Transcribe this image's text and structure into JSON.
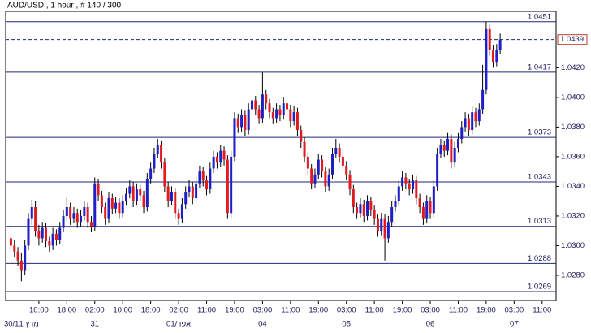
{
  "chart_data": {
    "type": "candlestick",
    "title": "AUD/USD , 1 hour , # 140 / 300",
    "up_color": "#1f1fc8",
    "down_color": "#e01a1e",
    "wick_color": "#000000",
    "level_color": "#1f2a7a",
    "ylim": [
      1.0263,
      1.0458
    ],
    "yticks": [
      {
        "value": 1.042,
        "label": "1.0420"
      },
      {
        "value": 1.04,
        "label": "1.0400"
      },
      {
        "value": 1.038,
        "label": "1.0380"
      },
      {
        "value": 1.036,
        "label": "1.0360"
      },
      {
        "value": 1.034,
        "label": "1.0340"
      },
      {
        "value": 1.032,
        "label": "1.0320"
      },
      {
        "value": 1.03,
        "label": "1.0300"
      },
      {
        "value": 1.028,
        "label": "1.0280"
      }
    ],
    "xlim": [
      -1.5,
      156
    ],
    "xticks": [
      {
        "value": 8,
        "label": "10:00"
      },
      {
        "value": 16,
        "label": "18:00"
      },
      {
        "value": 24,
        "label": "02:00"
      },
      {
        "value": 32,
        "label": "10:00"
      },
      {
        "value": 40,
        "label": "18:00"
      },
      {
        "value": 48,
        "label": "02:00"
      },
      {
        "value": 56,
        "label": "11:00"
      },
      {
        "value": 64,
        "label": "19:00"
      },
      {
        "value": 72,
        "label": "03:00"
      },
      {
        "value": 80,
        "label": "11:00"
      },
      {
        "value": 88,
        "label": "19:00"
      },
      {
        "value": 96,
        "label": "03:00"
      },
      {
        "value": 104,
        "label": "11:00"
      },
      {
        "value": 112,
        "label": "19:00"
      },
      {
        "value": 120,
        "label": "03:00"
      },
      {
        "value": 128,
        "label": "11:00"
      },
      {
        "value": 136,
        "label": "19:00"
      },
      {
        "value": 144,
        "label": "03:00"
      },
      {
        "value": 152,
        "label": "11:00"
      }
    ],
    "date_ticks": [
      {
        "value": 3,
        "label": "30/11 מרץ"
      },
      {
        "value": 24,
        "label": "31"
      },
      {
        "value": 48,
        "label": "01/אפר"
      },
      {
        "value": 72,
        "label": "04"
      },
      {
        "value": 96,
        "label": "05"
      },
      {
        "value": 120,
        "label": "06"
      },
      {
        "value": 144,
        "label": "07"
      }
    ],
    "levels": [
      1.0451,
      1.0417,
      1.0373,
      1.0343,
      1.0313,
      1.0288,
      1.0269
    ],
    "current_price": 1.0439,
    "candles": [
      [
        1.0305,
        1.0312,
        1.0296,
        1.03
      ],
      [
        1.03,
        1.0304,
        1.0292,
        1.0296
      ],
      [
        1.0296,
        1.0299,
        1.0286,
        1.029
      ],
      [
        1.029,
        1.0295,
        1.0276,
        1.0283
      ],
      [
        1.0283,
        1.0304,
        1.028,
        1.03
      ],
      [
        1.03,
        1.0322,
        1.0297,
        1.0318
      ],
      [
        1.0318,
        1.0331,
        1.0314,
        1.0326
      ],
      [
        1.0326,
        1.033,
        1.0306,
        1.031
      ],
      [
        1.031,
        1.0314,
        1.03,
        1.0305
      ],
      [
        1.0305,
        1.0316,
        1.0302,
        1.0312
      ],
      [
        1.0312,
        1.0315,
        1.0299,
        1.0303
      ],
      [
        1.0303,
        1.0306,
        1.0296,
        1.03
      ],
      [
        1.03,
        1.0312,
        1.0297,
        1.0308
      ],
      [
        1.0308,
        1.0311,
        1.03,
        1.0304
      ],
      [
        1.0304,
        1.0316,
        1.0301,
        1.0312
      ],
      [
        1.0312,
        1.0324,
        1.0309,
        1.032
      ],
      [
        1.032,
        1.0333,
        1.0317,
        1.0326
      ],
      [
        1.0326,
        1.0329,
        1.0314,
        1.0318
      ],
      [
        1.0318,
        1.0326,
        1.0315,
        1.0322
      ],
      [
        1.0322,
        1.0325,
        1.0312,
        1.0316
      ],
      [
        1.0316,
        1.0324,
        1.0313,
        1.032
      ],
      [
        1.032,
        1.033,
        1.0317,
        1.0326
      ],
      [
        1.0326,
        1.0329,
        1.0312,
        1.0316
      ],
      [
        1.0316,
        1.032,
        1.0309,
        1.0313
      ],
      [
        1.0313,
        1.0346,
        1.031,
        1.0342
      ],
      [
        1.0342,
        1.0345,
        1.033,
        1.0334
      ],
      [
        1.0334,
        1.0337,
        1.0322,
        1.0326
      ],
      [
        1.0326,
        1.0329,
        1.0314,
        1.0318
      ],
      [
        1.0318,
        1.0336,
        1.0315,
        1.0332
      ],
      [
        1.0332,
        1.0335,
        1.0321,
        1.0325
      ],
      [
        1.0325,
        1.0333,
        1.0322,
        1.0329
      ],
      [
        1.0329,
        1.0332,
        1.0318,
        1.0322
      ],
      [
        1.0322,
        1.0334,
        1.0319,
        1.033
      ],
      [
        1.033,
        1.0339,
        1.0327,
        1.0335
      ],
      [
        1.0335,
        1.0344,
        1.0332,
        1.034
      ],
      [
        1.034,
        1.0343,
        1.0326,
        1.033
      ],
      [
        1.033,
        1.0342,
        1.0327,
        1.0338
      ],
      [
        1.0338,
        1.0341,
        1.033,
        1.0334
      ],
      [
        1.0334,
        1.0337,
        1.0322,
        1.0326
      ],
      [
        1.0326,
        1.0349,
        1.0323,
        1.0345
      ],
      [
        1.0345,
        1.0356,
        1.0342,
        1.0352
      ],
      [
        1.0352,
        1.0366,
        1.0349,
        1.0362
      ],
      [
        1.0362,
        1.0372,
        1.0359,
        1.0368
      ],
      [
        1.0368,
        1.0371,
        1.0352,
        1.0356
      ],
      [
        1.0356,
        1.0359,
        1.0336,
        1.034
      ],
      [
        1.034,
        1.0343,
        1.0326,
        1.033
      ],
      [
        1.033,
        1.034,
        1.0327,
        1.0336
      ],
      [
        1.0336,
        1.0339,
        1.0318,
        1.0322
      ],
      [
        1.0322,
        1.0325,
        1.0314,
        1.0318
      ],
      [
        1.0318,
        1.0332,
        1.0315,
        1.0328
      ],
      [
        1.0328,
        1.034,
        1.0325,
        1.0336
      ],
      [
        1.0336,
        1.0344,
        1.0333,
        1.034
      ],
      [
        1.034,
        1.0343,
        1.0328,
        1.0332
      ],
      [
        1.0332,
        1.0346,
        1.0329,
        1.0342
      ],
      [
        1.0342,
        1.0354,
        1.0339,
        1.035
      ],
      [
        1.035,
        1.0353,
        1.034,
        1.0344
      ],
      [
        1.0344,
        1.0347,
        1.0334,
        1.0338
      ],
      [
        1.0338,
        1.0356,
        1.0335,
        1.0352
      ],
      [
        1.0352,
        1.0364,
        1.0349,
        1.036
      ],
      [
        1.036,
        1.0363,
        1.0352,
        1.0356
      ],
      [
        1.0356,
        1.0368,
        1.0353,
        1.0364
      ],
      [
        1.0364,
        1.0367,
        1.0354,
        1.0358
      ],
      [
        1.0358,
        1.0361,
        1.0318,
        1.0322
      ],
      [
        1.0322,
        1.0364,
        1.0319,
        1.036
      ],
      [
        1.036,
        1.039,
        1.0357,
        1.0386
      ],
      [
        1.0386,
        1.0389,
        1.0376,
        1.038
      ],
      [
        1.038,
        1.0392,
        1.0377,
        1.0388
      ],
      [
        1.0388,
        1.0391,
        1.0374,
        1.0378
      ],
      [
        1.0378,
        1.0396,
        1.0375,
        1.0392
      ],
      [
        1.0392,
        1.0402,
        1.0389,
        1.0398
      ],
      [
        1.0398,
        1.0401,
        1.0388,
        1.0392
      ],
      [
        1.0392,
        1.0395,
        1.0382,
        1.0386
      ],
      [
        1.0386,
        1.0417,
        1.0383,
        1.0402
      ],
      [
        1.0402,
        1.0405,
        1.0392,
        1.0396
      ],
      [
        1.0396,
        1.0399,
        1.0386,
        1.039
      ],
      [
        1.039,
        1.0393,
        1.0382,
        1.0386
      ],
      [
        1.0386,
        1.0396,
        1.0383,
        1.0392
      ],
      [
        1.0392,
        1.0395,
        1.0384,
        1.0388
      ],
      [
        1.0388,
        1.04,
        1.0385,
        1.0396
      ],
      [
        1.0396,
        1.0399,
        1.0388,
        1.0392
      ],
      [
        1.0392,
        1.0395,
        1.038,
        1.0384
      ],
      [
        1.0384,
        1.0394,
        1.0381,
        1.039
      ],
      [
        1.039,
        1.0393,
        1.0374,
        1.0378
      ],
      [
        1.0378,
        1.0381,
        1.0366,
        1.037
      ],
      [
        1.037,
        1.0373,
        1.0356,
        1.036
      ],
      [
        1.036,
        1.0363,
        1.0348,
        1.0352
      ],
      [
        1.0352,
        1.0355,
        1.0338,
        1.0342
      ],
      [
        1.0342,
        1.0352,
        1.0339,
        1.0348
      ],
      [
        1.0348,
        1.0362,
        1.0345,
        1.0358
      ],
      [
        1.0358,
        1.0361,
        1.0346,
        1.035
      ],
      [
        1.035,
        1.0353,
        1.0336,
        1.034
      ],
      [
        1.034,
        1.0352,
        1.0337,
        1.0348
      ],
      [
        1.0348,
        1.0366,
        1.0345,
        1.0362
      ],
      [
        1.0362,
        1.0372,
        1.0359,
        1.0366
      ],
      [
        1.0366,
        1.0369,
        1.0356,
        1.036
      ],
      [
        1.036,
        1.0363,
        1.035,
        1.0354
      ],
      [
        1.0354,
        1.0357,
        1.0344,
        1.0348
      ],
      [
        1.0348,
        1.0351,
        1.0334,
        1.0338
      ],
      [
        1.0338,
        1.0341,
        1.0322,
        1.0326
      ],
      [
        1.0326,
        1.0329,
        1.0318,
        1.0322
      ],
      [
        1.0322,
        1.0332,
        1.0319,
        1.0328
      ],
      [
        1.0328,
        1.0331,
        1.0316,
        1.032
      ],
      [
        1.032,
        1.0334,
        1.0317,
        1.033
      ],
      [
        1.033,
        1.0333,
        1.032,
        1.0324
      ],
      [
        1.0324,
        1.0327,
        1.0314,
        1.0318
      ],
      [
        1.0318,
        1.0321,
        1.0306,
        1.031
      ],
      [
        1.031,
        1.0322,
        1.0307,
        1.0318
      ],
      [
        1.0318,
        1.0321,
        1.029,
        1.0305
      ],
      [
        1.0305,
        1.032,
        1.0302,
        1.0316
      ],
      [
        1.0316,
        1.033,
        1.0313,
        1.0326
      ],
      [
        1.0326,
        1.0334,
        1.0323,
        1.033
      ],
      [
        1.033,
        1.0344,
        1.0327,
        1.034
      ],
      [
        1.034,
        1.035,
        1.0337,
        1.0346
      ],
      [
        1.0346,
        1.0349,
        1.0338,
        1.0342
      ],
      [
        1.0342,
        1.0345,
        1.0334,
        1.0338
      ],
      [
        1.0338,
        1.0348,
        1.0335,
        1.0344
      ],
      [
        1.0344,
        1.0347,
        1.0328,
        1.0332
      ],
      [
        1.0332,
        1.0335,
        1.0322,
        1.0326
      ],
      [
        1.0326,
        1.0329,
        1.0314,
        1.0318
      ],
      [
        1.0318,
        1.0334,
        1.0315,
        1.033
      ],
      [
        1.033,
        1.0333,
        1.0318,
        1.0322
      ],
      [
        1.0322,
        1.0344,
        1.0319,
        1.034
      ],
      [
        1.034,
        1.0366,
        1.0337,
        1.0362
      ],
      [
        1.0362,
        1.0372,
        1.0359,
        1.0368
      ],
      [
        1.0368,
        1.0371,
        1.036,
        1.0364
      ],
      [
        1.0364,
        1.0376,
        1.0361,
        1.0372
      ],
      [
        1.0372,
        1.0375,
        1.0352,
        1.0356
      ],
      [
        1.0356,
        1.037,
        1.0353,
        1.0366
      ],
      [
        1.0366,
        1.0376,
        1.0363,
        1.0372
      ],
      [
        1.0372,
        1.0384,
        1.0369,
        1.038
      ],
      [
        1.038,
        1.039,
        1.0377,
        1.0386
      ],
      [
        1.0386,
        1.0389,
        1.0374,
        1.0378
      ],
      [
        1.0378,
        1.0394,
        1.0375,
        1.039
      ],
      [
        1.039,
        1.0393,
        1.038,
        1.0384
      ],
      [
        1.0384,
        1.0396,
        1.0381,
        1.0392
      ],
      [
        1.0392,
        1.0422,
        1.0389,
        1.0405
      ],
      [
        1.0405,
        1.0451,
        1.0402,
        1.0446
      ],
      [
        1.0446,
        1.0449,
        1.0428,
        1.0432
      ],
      [
        1.0432,
        1.0435,
        1.042,
        1.0424
      ],
      [
        1.0424,
        1.0436,
        1.0421,
        1.0432
      ],
      [
        1.0432,
        1.0443,
        1.0429,
        1.0439
      ]
    ]
  }
}
